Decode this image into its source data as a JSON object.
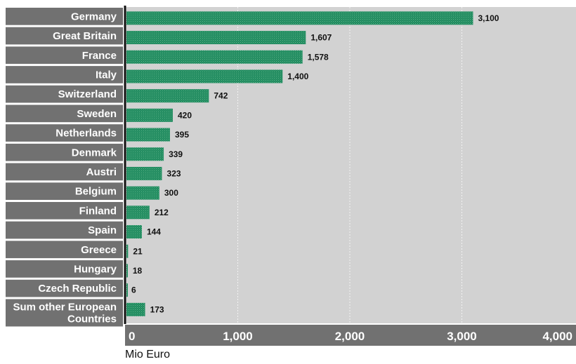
{
  "chart_data": {
    "type": "bar",
    "orientation": "horizontal",
    "categories": [
      "Germany",
      "Great Britain",
      "France",
      "Italy",
      "Switzerland",
      "Sweden",
      "Netherlands",
      "Denmark",
      "Austri",
      "Belgium",
      "Finland",
      "Spain",
      "Greece",
      "Hungary",
      "Czech Republic",
      "Sum other European Countries"
    ],
    "values": [
      3100,
      1607,
      1578,
      1400,
      742,
      420,
      395,
      339,
      323,
      300,
      212,
      144,
      21,
      18,
      6,
      173
    ],
    "value_labels": [
      "3,100",
      "1,607",
      "1,578",
      "1,400",
      "742",
      "420",
      "395",
      "339",
      "323",
      "300",
      "212",
      "144",
      "21",
      "18",
      "6",
      "173"
    ],
    "xlim": [
      0,
      4000
    ],
    "xticks": [
      0,
      1000,
      2000,
      3000,
      4000
    ],
    "xtick_labels": [
      "0",
      "1,000",
      "2,000",
      "3,000",
      "4,000"
    ],
    "xlabel": "Mio Euro",
    "grid": true,
    "colors": {
      "bar": "#1e8a5e",
      "bar_dot": "#62b68c",
      "plot_bg": "#d2d2d2",
      "label_box": "#717171",
      "grid": "#f2f2f2",
      "axis": "#111111"
    }
  }
}
